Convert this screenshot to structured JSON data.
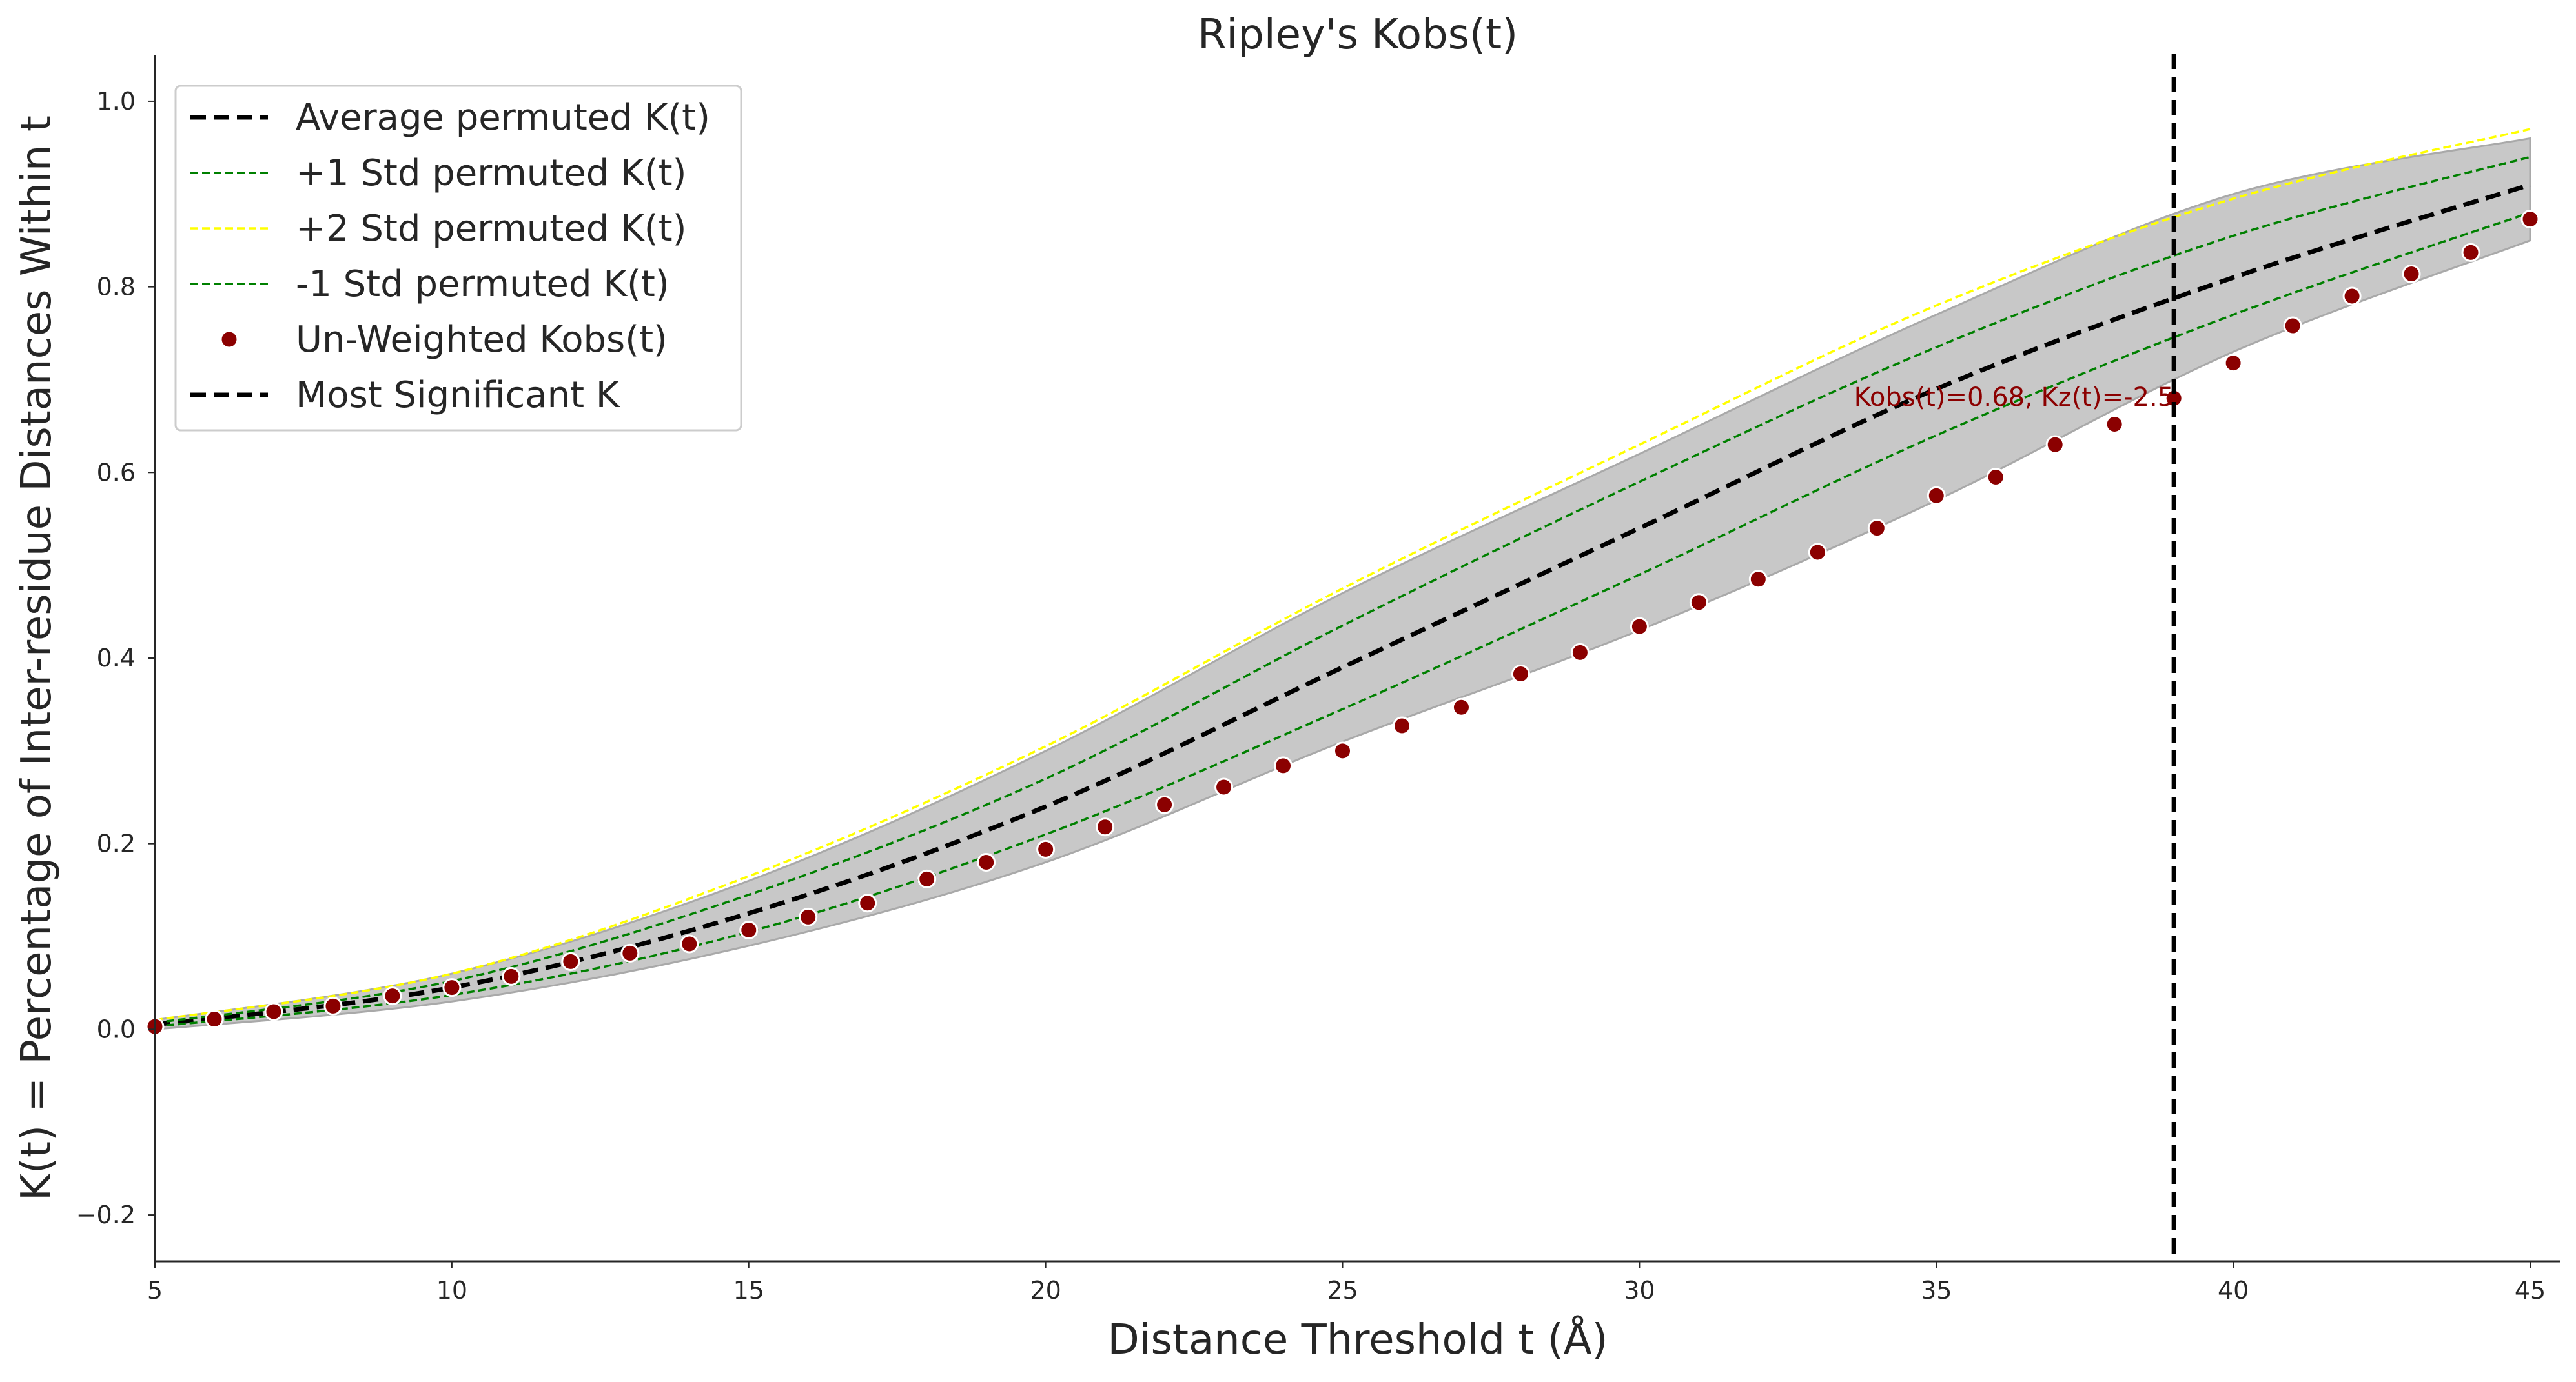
{
  "chart_data": {
    "type": "line",
    "title": "Ripley's Kobs(t)",
    "xlabel": "Distance Threshold t (Å)",
    "ylabel": "K(t) = Percentage of Inter-residue Distances Within t",
    "xlim": [
      5,
      45.5
    ],
    "ylim": [
      -0.25,
      1.05
    ],
    "xticks": [
      5,
      10,
      15,
      20,
      25,
      30,
      35,
      40,
      45
    ],
    "xtick_labels": [
      "5",
      "10",
      "15",
      "20",
      "25",
      "30",
      "35",
      "40",
      "45"
    ],
    "yticks": [
      -0.2,
      0.0,
      0.2,
      0.4,
      0.6,
      0.8,
      1.0
    ],
    "ytick_labels": [
      "−0.2",
      "0.0",
      "0.2",
      "0.4",
      "0.6",
      "0.8",
      "1.0"
    ],
    "grid": false,
    "legend_position": "top-left",
    "x": [
      5,
      10,
      15,
      20,
      25,
      30,
      35,
      40,
      45
    ],
    "band": {
      "upper": [
        0.01,
        0.06,
        0.16,
        0.3,
        0.47,
        0.62,
        0.77,
        0.9,
        0.96
      ],
      "lower": [
        0.0,
        0.03,
        0.09,
        0.18,
        0.31,
        0.43,
        0.57,
        0.73,
        0.85
      ],
      "color": "#c8c8c8"
    },
    "series": [
      {
        "name": "Average permuted K(t)",
        "style": "line-dashed-thick",
        "color": "#000000",
        "x": [
          5,
          10,
          15,
          20,
          25,
          30,
          35,
          40,
          45
        ],
        "values": [
          0.005,
          0.045,
          0.125,
          0.24,
          0.39,
          0.54,
          0.69,
          0.81,
          0.91
        ]
      },
      {
        "name": "+1 Std permuted K(t)",
        "style": "line-dashed-thin",
        "color": "#008000",
        "x": [
          5,
          10,
          15,
          20,
          25,
          30,
          35,
          40,
          45
        ],
        "values": [
          0.007,
          0.052,
          0.145,
          0.27,
          0.435,
          0.59,
          0.735,
          0.855,
          0.94
        ]
      },
      {
        "name": "+2 Std permuted K(t)",
        "style": "line-dashed-thin",
        "color": "#ffff00",
        "x": [
          5,
          10,
          15,
          20,
          25,
          30,
          35,
          40,
          45
        ],
        "values": [
          0.01,
          0.06,
          0.165,
          0.305,
          0.475,
          0.63,
          0.78,
          0.895,
          0.97
        ]
      },
      {
        "name": "-1 Std permuted K(t)",
        "style": "line-dashed-thin",
        "color": "#008000",
        "x": [
          5,
          10,
          15,
          20,
          25,
          30,
          35,
          40,
          45
        ],
        "values": [
          0.003,
          0.037,
          0.105,
          0.21,
          0.345,
          0.49,
          0.64,
          0.77,
          0.88
        ]
      },
      {
        "name": "Un-Weighted Kobs(t)",
        "style": "scatter",
        "color": "#8b0000",
        "x": [
          5,
          6,
          7,
          8,
          9,
          10,
          11,
          12,
          13,
          14,
          15,
          16,
          17,
          18,
          19,
          20,
          21,
          22,
          23,
          24,
          25,
          26,
          27,
          28,
          29,
          30,
          31,
          32,
          33,
          34,
          35,
          36,
          37,
          38,
          39,
          40,
          41,
          42,
          43,
          44,
          45
        ],
        "values": [
          0.003,
          0.011,
          0.019,
          0.025,
          0.036,
          0.045,
          0.057,
          0.073,
          0.082,
          0.092,
          0.107,
          0.121,
          0.136,
          0.162,
          0.18,
          0.194,
          0.218,
          0.242,
          0.261,
          0.284,
          0.3,
          0.327,
          0.347,
          0.383,
          0.406,
          0.434,
          0.46,
          0.485,
          0.514,
          0.54,
          0.575,
          0.595,
          0.63,
          0.652,
          0.68,
          0.718,
          0.758,
          0.79,
          0.814,
          0.837,
          0.873
        ]
      },
      {
        "name": "Most Significant K",
        "style": "vline-dashed-thick",
        "color": "#000000",
        "x": 39
      }
    ],
    "annotations": [
      {
        "text": "Kobs(t)=0.68, Kz(t)=-2.5",
        "x": 39,
        "y": 0.68,
        "color": "#8b0000",
        "anchor": "end"
      }
    ]
  }
}
